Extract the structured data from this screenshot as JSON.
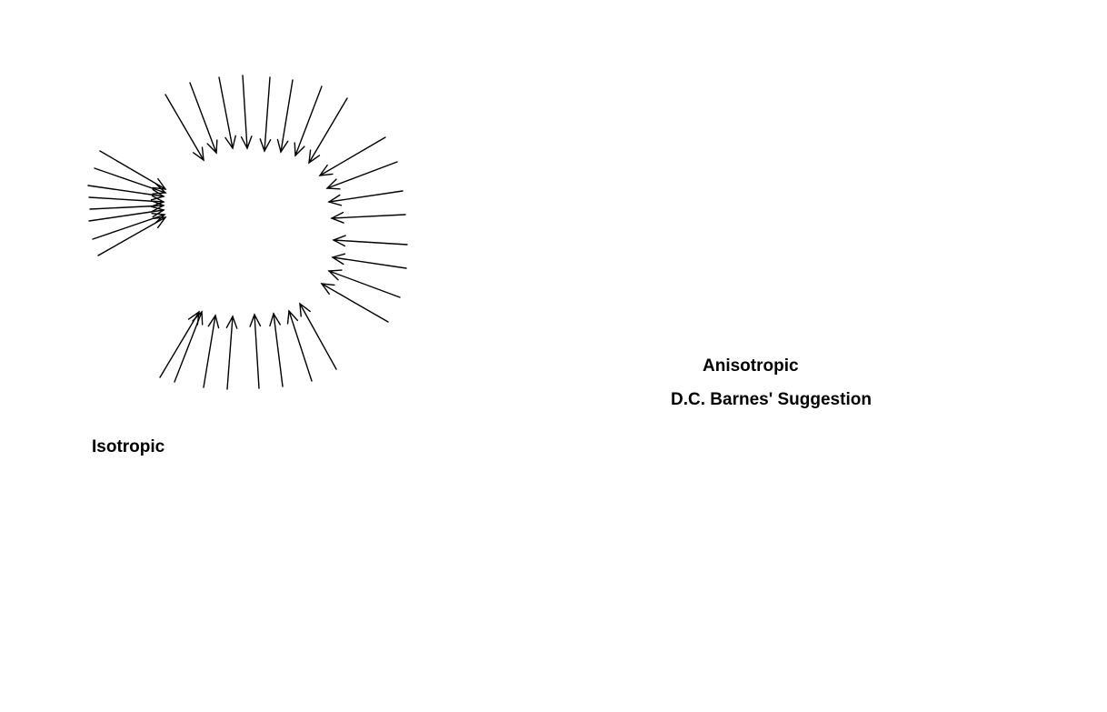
{
  "labels": {
    "isotropic": "Isotropic",
    "anisotropic": "Anisotropic",
    "suggestion": "D.C. Barnes' Suggestion"
  },
  "colors": {
    "stroke": "#000000",
    "background": "#ffffff"
  }
}
